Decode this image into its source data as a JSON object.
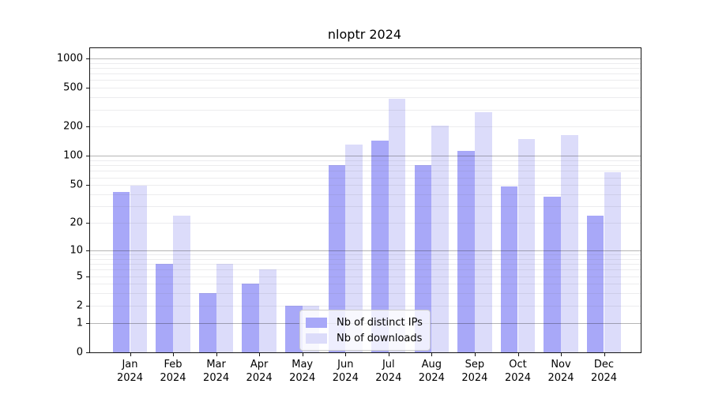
{
  "title": "nloptr 2024",
  "chart_data": {
    "type": "bar",
    "title": "nloptr 2024",
    "xlabel": "",
    "ylabel": "",
    "yscale": "log1p",
    "ylim": [
      0,
      1270
    ],
    "yticks": [
      0,
      1,
      2,
      5,
      10,
      20,
      50,
      100,
      200,
      500,
      1000
    ],
    "grid": "horizontal, minor light + major dark at powers of 10, drawn over bars",
    "legend_position": "inside lower-left-center, white box",
    "year": "2024",
    "categories": [
      "Jan",
      "Feb",
      "Mar",
      "Apr",
      "May",
      "Jun",
      "Jul",
      "Aug",
      "Sep",
      "Oct",
      "Nov",
      "Dec"
    ],
    "series": [
      {
        "name": "Nb of distinct IPs",
        "color": "#a8a8f8",
        "values": [
          42,
          7,
          3,
          4,
          2,
          80,
          145,
          80,
          112,
          48,
          38,
          24
        ]
      },
      {
        "name": "Nb of downloads",
        "color": "#dcdcfa",
        "values": [
          49,
          24,
          7,
          6,
          2,
          130,
          385,
          205,
          280,
          149,
          165,
          68
        ]
      }
    ]
  }
}
